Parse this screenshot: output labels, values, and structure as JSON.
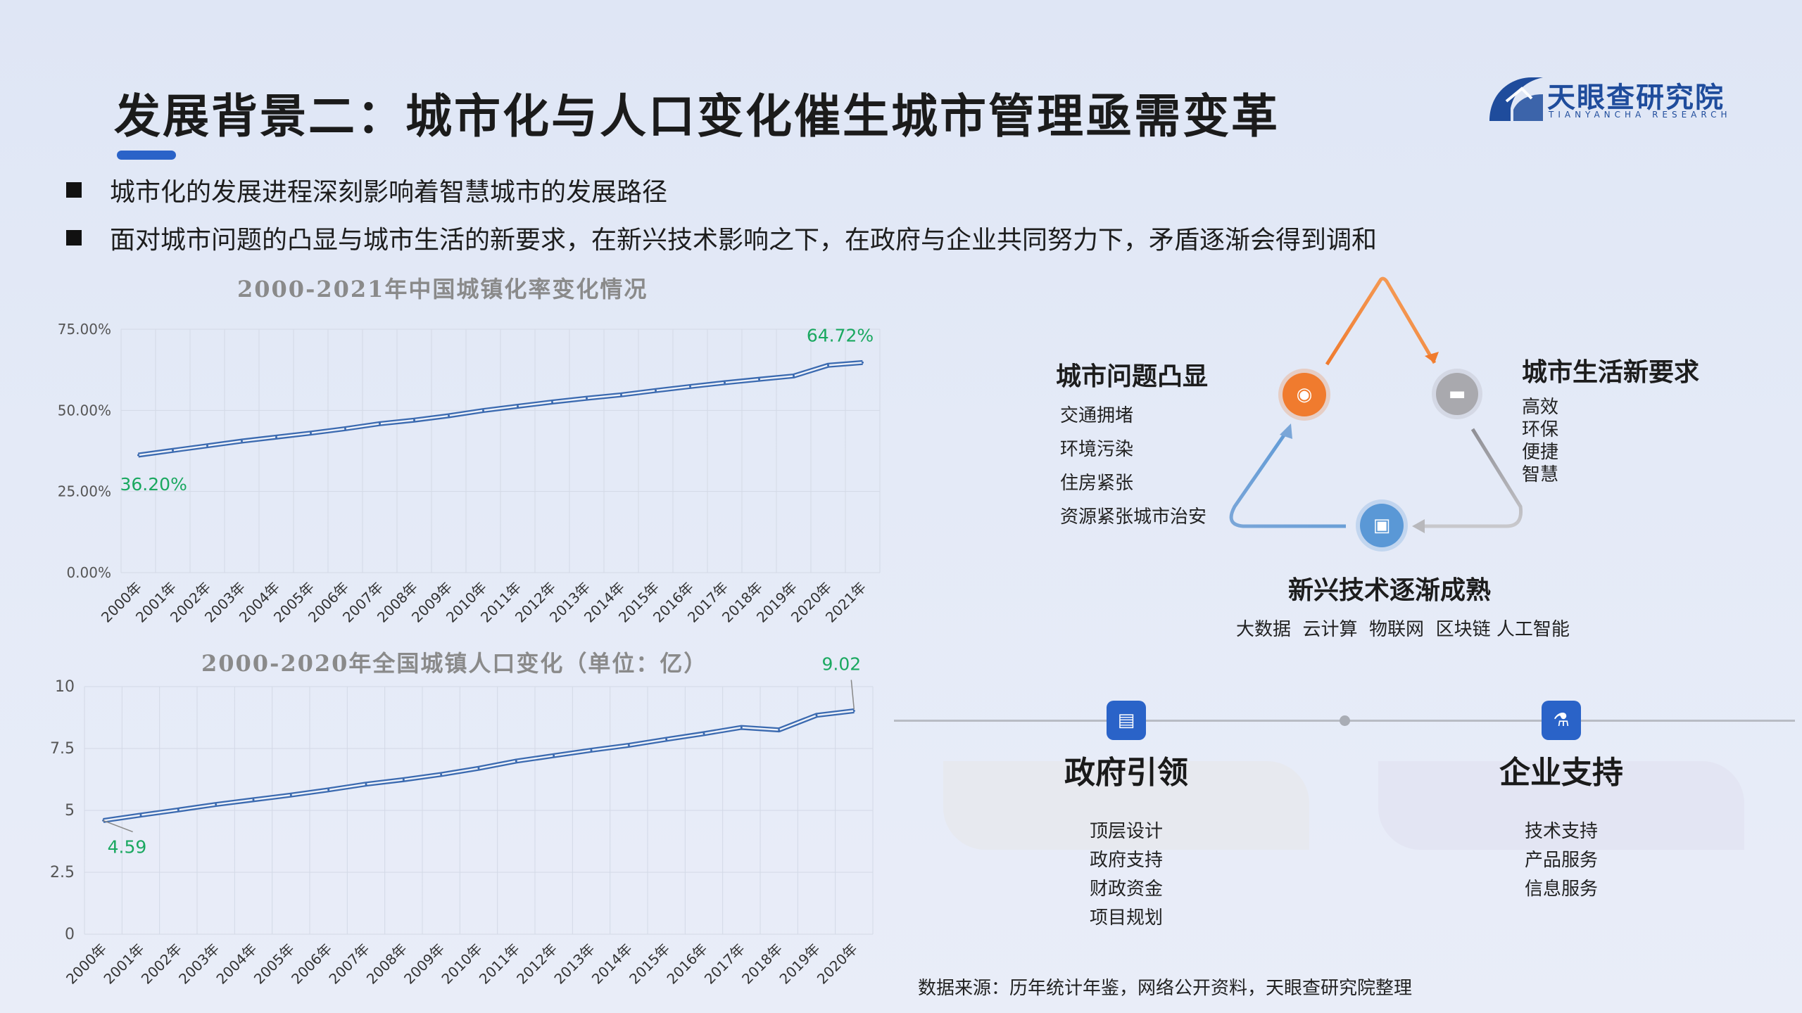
{
  "header": {
    "title": "发展背景二：城市化与人口变化催生城市管理亟需变革",
    "logo_text": "天眼查研究院",
    "logo_sub": "TIANYANCHA RESEARCH"
  },
  "bullets": [
    "城市化的发展进程深刻影响着智慧城市的发展路径",
    "面对城市问题的凸显与城市生活的新要求，在新兴技术影响之下，在政府与企业共同努力下，矛盾逐渐会得到调和"
  ],
  "chart_data": [
    {
      "type": "line",
      "title": "2000-2021年中国城镇化率变化情况",
      "categories": [
        "2000年",
        "2001年",
        "2002年",
        "2003年",
        "2004年",
        "2005年",
        "2006年",
        "2007年",
        "2008年",
        "2009年",
        "2010年",
        "2011年",
        "2012年",
        "2013年",
        "2014年",
        "2015年",
        "2016年",
        "2017年",
        "2018年",
        "2019年",
        "2020年",
        "2021年"
      ],
      "values": [
        36.2,
        37.66,
        39.09,
        40.53,
        41.76,
        42.99,
        44.34,
        45.89,
        46.99,
        48.34,
        49.95,
        51.27,
        52.57,
        53.73,
        54.77,
        56.1,
        57.35,
        58.52,
        59.58,
        60.6,
        63.89,
        64.72
      ],
      "yticks": [
        "0.00%",
        "25.00%",
        "50.00%",
        "75.00%"
      ],
      "ylim": [
        0,
        75
      ],
      "annotations": [
        "36.20%",
        "64.72%"
      ],
      "grid": true,
      "color": "#3b6ab0",
      "label_color": "#1aa860"
    },
    {
      "type": "line",
      "title": "2000-2020年全国城镇人口变化（单位：亿）",
      "categories": [
        "2000年",
        "2001年",
        "2002年",
        "2003年",
        "2004年",
        "2005年",
        "2006年",
        "2007年",
        "2008年",
        "2009年",
        "2010年",
        "2011年",
        "2012年",
        "2013年",
        "2014年",
        "2015年",
        "2016年",
        "2017年",
        "2018年",
        "2019年",
        "2020年"
      ],
      "values": [
        4.59,
        4.81,
        5.02,
        5.24,
        5.43,
        5.62,
        5.83,
        6.06,
        6.24,
        6.45,
        6.7,
        6.99,
        7.21,
        7.43,
        7.63,
        7.87,
        8.1,
        8.35,
        8.25,
        8.84,
        9.02
      ],
      "yticks": [
        "0",
        "2.5",
        "5",
        "7.5",
        "10"
      ],
      "ylim": [
        0,
        10
      ],
      "annotations": [
        "4.59",
        "9.02"
      ],
      "grid": true,
      "color": "#3b6ab0",
      "label_color": "#1aa860"
    }
  ],
  "diagram": {
    "left_node": {
      "title": "城市问题凸显",
      "items": [
        "交通拥堵",
        "环境污染",
        "住房紧张",
        "资源紧张城市治安"
      ]
    },
    "right_node": {
      "title": "城市生活新要求",
      "items": [
        "高效",
        "环保",
        "便捷",
        "智慧"
      ]
    },
    "bottom_node": {
      "title": "新兴技术逐渐成熟",
      "subtitle": "大数据  云计算  物联网  区块链 人工智能"
    }
  },
  "panels": [
    {
      "title": "政府引领",
      "items": [
        "顶层设计",
        "政府支持",
        "财政资金",
        "项目规划"
      ]
    },
    {
      "title": "企业支持",
      "items": [
        "技术支持",
        "产品服务",
        "信息服务"
      ]
    }
  ],
  "source": "数据来源：历年统计年鉴，网络公开资料，天眼查研究院整理",
  "colors": {
    "accent": "#2a63c8",
    "orange": "#f07b2e",
    "grey": "#a9a9ae",
    "blue_icon": "#5a98d6"
  }
}
